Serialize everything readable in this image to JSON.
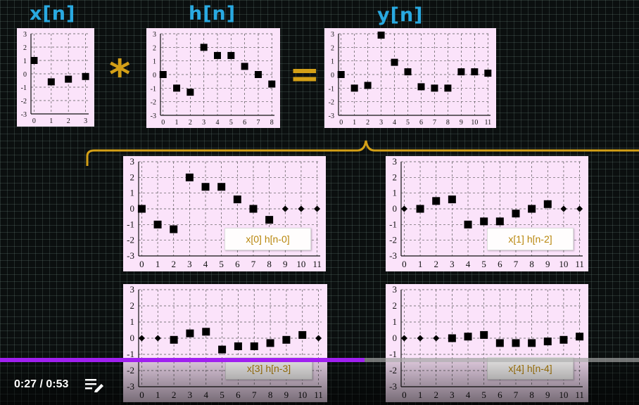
{
  "labels": {
    "x": "x[n]",
    "h": "h[n]",
    "y": "y[n]",
    "convolve": "*",
    "equals": "="
  },
  "colors": {
    "label": "#29a9e1",
    "operator": "#d4a017",
    "panel": "#fbe3fa",
    "caption": "#b8860b",
    "progress": "#a020f0"
  },
  "plots": [
    {
      "id": "x",
      "n": [
        0,
        1,
        2,
        3
      ],
      "values": [
        1,
        -0.6,
        -0.4,
        -0.2
      ],
      "xticks": [
        0,
        1,
        2,
        3
      ],
      "yticks": [
        3,
        2,
        1,
        0,
        -1,
        -2,
        -3
      ],
      "caption": ""
    },
    {
      "id": "h",
      "n": [
        0,
        1,
        2,
        3,
        4,
        5,
        6,
        7,
        8
      ],
      "values": [
        0,
        -1,
        -1.3,
        2,
        1.4,
        1.4,
        0.6,
        0,
        -0.7
      ],
      "xticks": [
        0,
        1,
        2,
        3,
        4,
        5,
        6,
        7,
        8
      ],
      "yticks": [
        3,
        2,
        1,
        0,
        -1,
        -2,
        -3
      ],
      "caption": ""
    },
    {
      "id": "y",
      "n": [
        0,
        1,
        2,
        3,
        4,
        5,
        6,
        7,
        8,
        9,
        10,
        11
      ],
      "values": [
        0,
        -1,
        -0.8,
        2.9,
        0.9,
        0.2,
        -0.9,
        -1,
        -1,
        0.2,
        0.2,
        0.1
      ],
      "xticks": [
        0,
        1,
        2,
        3,
        4,
        5,
        6,
        7,
        8,
        9,
        10,
        11
      ],
      "yticks": [
        3,
        2,
        1,
        0,
        -1,
        -2,
        -3
      ],
      "caption": ""
    },
    {
      "id": "t0",
      "n": [
        0,
        1,
        2,
        3,
        4,
        5,
        6,
        7,
        8,
        9,
        10,
        11
      ],
      "values": [
        0,
        -1,
        -1.3,
        2,
        1.4,
        1.4,
        0.6,
        0,
        -0.7,
        0,
        0,
        0
      ],
      "zeroFrom": 9,
      "xticks": [
        0,
        1,
        2,
        3,
        4,
        5,
        6,
        7,
        8,
        9,
        10,
        11
      ],
      "yticks": [
        3,
        2,
        1,
        0,
        -1,
        -2,
        -3
      ],
      "caption": "x[0] h[n-0]"
    },
    {
      "id": "t1",
      "n": [
        0,
        1,
        2,
        3,
        4,
        5,
        6,
        7,
        8,
        9,
        10,
        11
      ],
      "values": [
        0,
        0,
        0.5,
        0.6,
        -1,
        -0.8,
        -0.8,
        -0.3,
        0,
        0.3,
        0,
        0
      ],
      "zeroAt": [
        0,
        10,
        11
      ],
      "xticks": [
        0,
        1,
        2,
        3,
        4,
        5,
        6,
        7,
        8,
        9,
        10,
        11
      ],
      "yticks": [
        3,
        2,
        1,
        0,
        -1,
        -2,
        -3
      ],
      "caption": "x[1] h[n-2]"
    },
    {
      "id": "t2",
      "n": [
        0,
        1,
        2,
        3,
        4,
        5,
        6,
        7,
        8,
        9,
        10,
        11
      ],
      "values": [
        0,
        0,
        -0.1,
        0.3,
        0.4,
        -0.7,
        -0.5,
        -0.5,
        -0.3,
        -0.1,
        0.2,
        0
      ],
      "zeroAt": [
        0,
        1,
        11
      ],
      "xticks": [
        0,
        1,
        2,
        3,
        4,
        5,
        6,
        7,
        8,
        9,
        10,
        11
      ],
      "yticks": [
        3,
        2,
        1,
        0,
        -1,
        -2,
        -3
      ],
      "caption": "x[3] h[n-3]"
    },
    {
      "id": "t3",
      "n": [
        0,
        1,
        2,
        3,
        4,
        5,
        6,
        7,
        8,
        9,
        10,
        11
      ],
      "values": [
        0,
        0,
        0,
        0,
        0.1,
        0.2,
        -0.3,
        -0.3,
        -0.3,
        -0.2,
        -0.1,
        0.1
      ],
      "zeroAt": [
        0,
        1,
        2
      ],
      "xticks": [
        0,
        1,
        2,
        3,
        4,
        5,
        6,
        7,
        8,
        9,
        10,
        11
      ],
      "yticks": [
        3,
        2,
        1,
        0,
        -1,
        -2,
        -3
      ],
      "caption": "x[4] h[n-4]"
    }
  ],
  "player": {
    "time": "0:27 / 0:53",
    "progress": 0.57,
    "playlist_icon": "playlist-edit-icon"
  }
}
